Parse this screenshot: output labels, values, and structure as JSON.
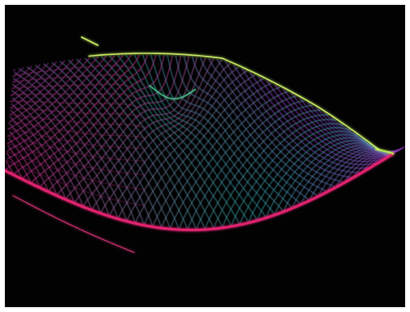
{
  "scene": {
    "kind": "3d-wireframe-surface-render",
    "background": "#020203",
    "frame": "#ffffff",
    "palette": {
      "front_edge": "#e0206e",
      "front_edge_glow": "#ff3d8a",
      "right_edge": "#b4e64a",
      "top_crest": "#d8ff6a",
      "mesh_warm": "#c8308c",
      "mesh_cool": "#2a9e9a",
      "mesh_deep": "#4a2a9e",
      "mesh_mid": "#7a3cc0",
      "dip_highlight": "#55e0a0"
    }
  }
}
